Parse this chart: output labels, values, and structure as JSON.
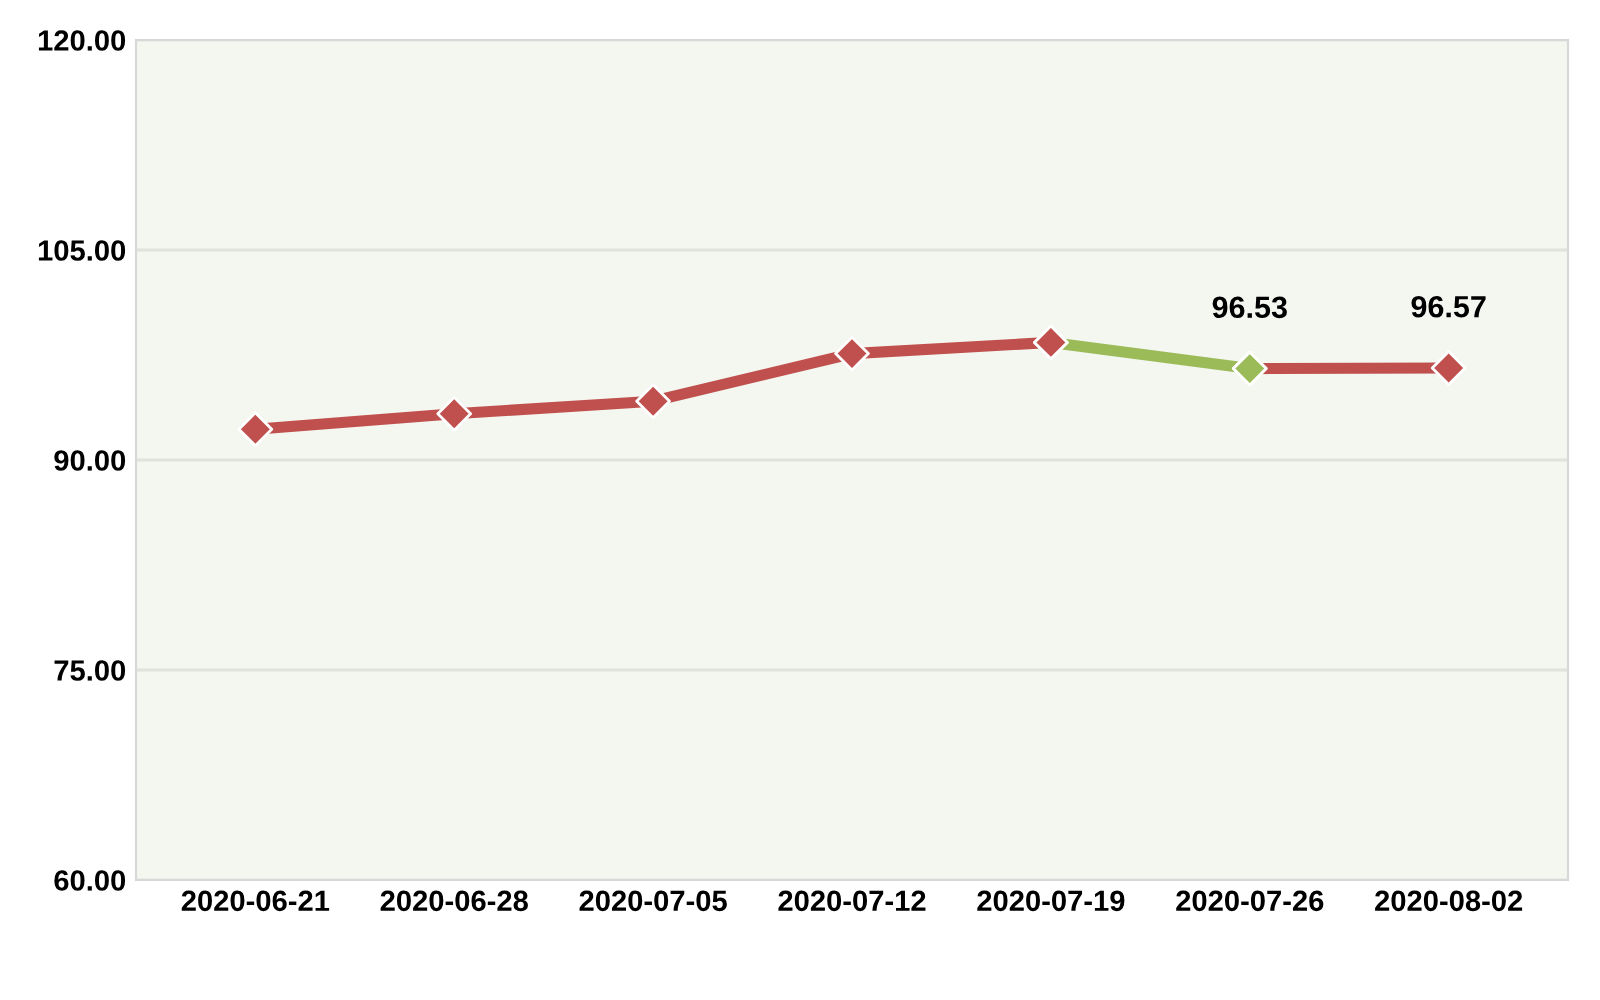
{
  "chart_data": {
    "type": "line",
    "categories": [
      "2020-06-21",
      "2020-06-28",
      "2020-07-05",
      "2020-07-12",
      "2020-07-19",
      "2020-07-26",
      "2020-08-02"
    ],
    "series": [
      {
        "color": "#c0504d",
        "values": [
          92.2,
          93.3,
          94.2,
          97.6,
          98.4,
          null,
          null
        ]
      },
      {
        "color": "#9bbb59",
        "values": [
          null,
          null,
          null,
          null,
          98.4,
          96.53,
          null
        ],
        "colors": [
          null,
          null,
          null,
          null,
          "#c0504d",
          "#9bbb59",
          null
        ],
        "value_labels": [
          null,
          null,
          null,
          null,
          null,
          "96.53",
          null
        ]
      },
      {
        "color": "#c0504d",
        "values": [
          null,
          null,
          null,
          null,
          null,
          96.53,
          96.57
        ],
        "colors": [
          null,
          null,
          null,
          null,
          null,
          "#9bbb59",
          "#c0504d"
        ],
        "value_labels": [
          null,
          null,
          null,
          null,
          null,
          null,
          "96.57"
        ]
      }
    ],
    "ylim": [
      60,
      120
    ],
    "yticks": [
      {
        "value": 60,
        "label": "60.00"
      },
      {
        "value": 75,
        "label": "75.00"
      },
      {
        "value": 90,
        "label": "90.00"
      },
      {
        "value": 105,
        "label": "105.00"
      },
      {
        "value": 120,
        "label": "120.00"
      }
    ],
    "grid": "y",
    "marker": "diamond",
    "line_style": "solid",
    "legend": false
  }
}
